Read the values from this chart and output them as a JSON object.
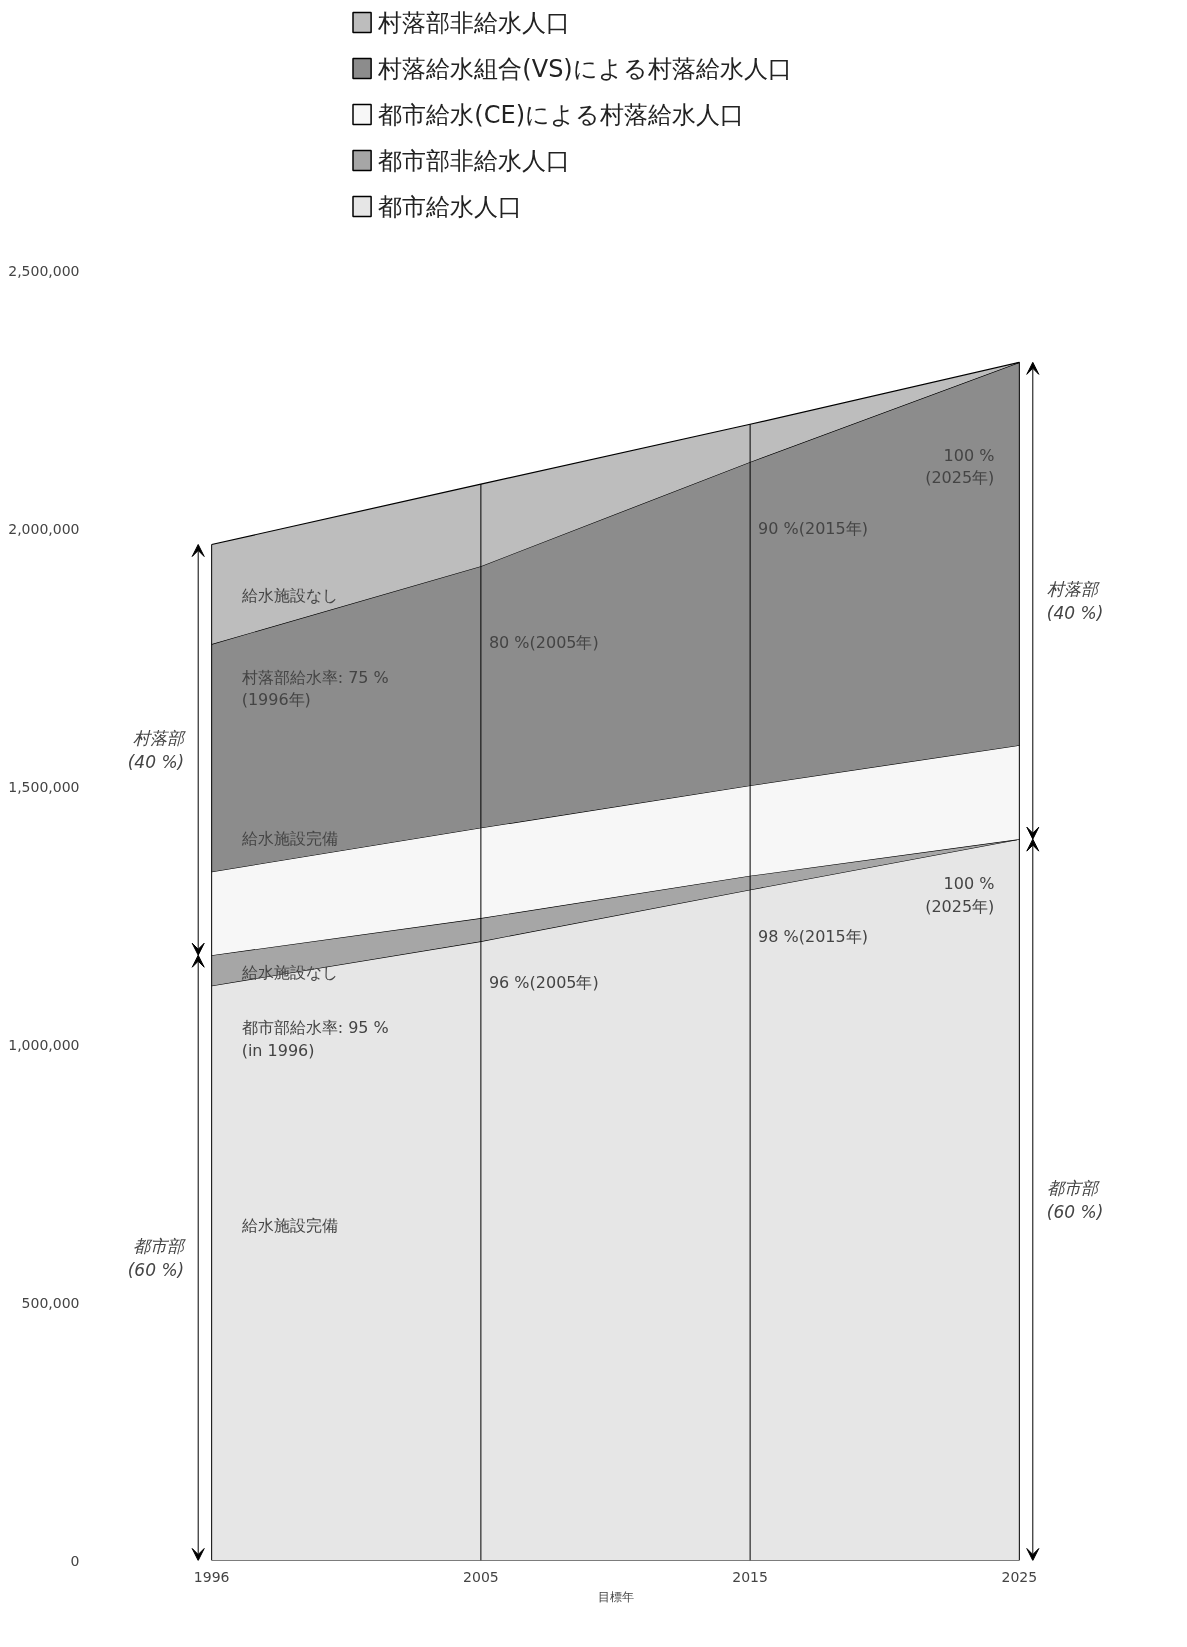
{
  "chart_data": {
    "type": "area",
    "stacked": true,
    "xlabel": "目標年",
    "legend": "top",
    "grid": false,
    "categories": [
      "1996",
      "2005",
      "2015",
      "2025"
    ],
    "series": [
      {
        "name": "都市給水人口",
        "color": "#e6e6e6",
        "values": [
          1114000,
          1200000,
          1300000,
          1398000
        ]
      },
      {
        "name": "都市部非給水人口",
        "color": "#a6a6a6",
        "values": [
          59000,
          45000,
          27000,
          0
        ]
      },
      {
        "name": "都市給水(CE)による村落給水人口",
        "color": "#f7f7f7",
        "values": [
          162000,
          175000,
          175000,
          182000
        ]
      },
      {
        "name": "村落給水組合(VS)による村落給水人口",
        "color": "#8c8c8c",
        "values": [
          441000,
          507000,
          627000,
          742000
        ]
      },
      {
        "name": "村落部非給水人口",
        "color": "#bdbdbd",
        "values": [
          193000,
          159000,
          73000,
          0
        ]
      }
    ],
    "ylim": [
      0,
      2500000
    ],
    "yticks": [
      {
        "value": 0,
        "label": "0"
      },
      {
        "value": 500000,
        "label": "500,000"
      },
      {
        "value": 1000000,
        "label": "1,000,000"
      },
      {
        "value": 1500000,
        "label": "1,500,000"
      },
      {
        "value": 2000000,
        "label": "2,000,000"
      },
      {
        "value": 2500000,
        "label": "2,500,000"
      }
    ],
    "ref_lines": [
      {
        "axis": "x",
        "value": "2005",
        "color": "#000000"
      },
      {
        "axis": "x",
        "value": "2015",
        "color": "#000000"
      }
    ],
    "annotations": [
      "村落部\n(40 %)",
      "都市部\n(60 %)",
      "村落部\n(40 %)",
      "都市部\n(60 %)",
      {
        "text": "給水施設なし",
        "x": "1996",
        "y": 1870000
      },
      {
        "text": "村落部給水率: 75 %\n(1996年)",
        "x": "1996",
        "y": 1690000
      },
      {
        "text": "80 %(2005年)",
        "x": "2005",
        "y": 1780000
      },
      {
        "text": "90 %(2015年)",
        "x": "2015",
        "y": 2000000
      },
      {
        "text": "100 %\n(2025年)",
        "x": "2025",
        "y": 2120000
      },
      {
        "text": "給水施設完備",
        "x": "1996",
        "y": 1400000
      },
      {
        "text": "給水施設なし",
        "x": "1996",
        "y": 1140000
      },
      {
        "text": "96 %(2005年)",
        "x": "2005",
        "y": 1120000
      },
      {
        "text": "98 %(2015年)",
        "x": "2015",
        "y": 1210000
      },
      {
        "text": "100 %\n(2025年)",
        "x": "2025",
        "y": 1290000
      },
      {
        "text": "都市部給水率: 95 %\n(in 1996)",
        "x": "1996",
        "y": 1010000
      },
      {
        "text": "給水施設完備",
        "x": "1996",
        "y": 650000
      }
    ]
  }
}
